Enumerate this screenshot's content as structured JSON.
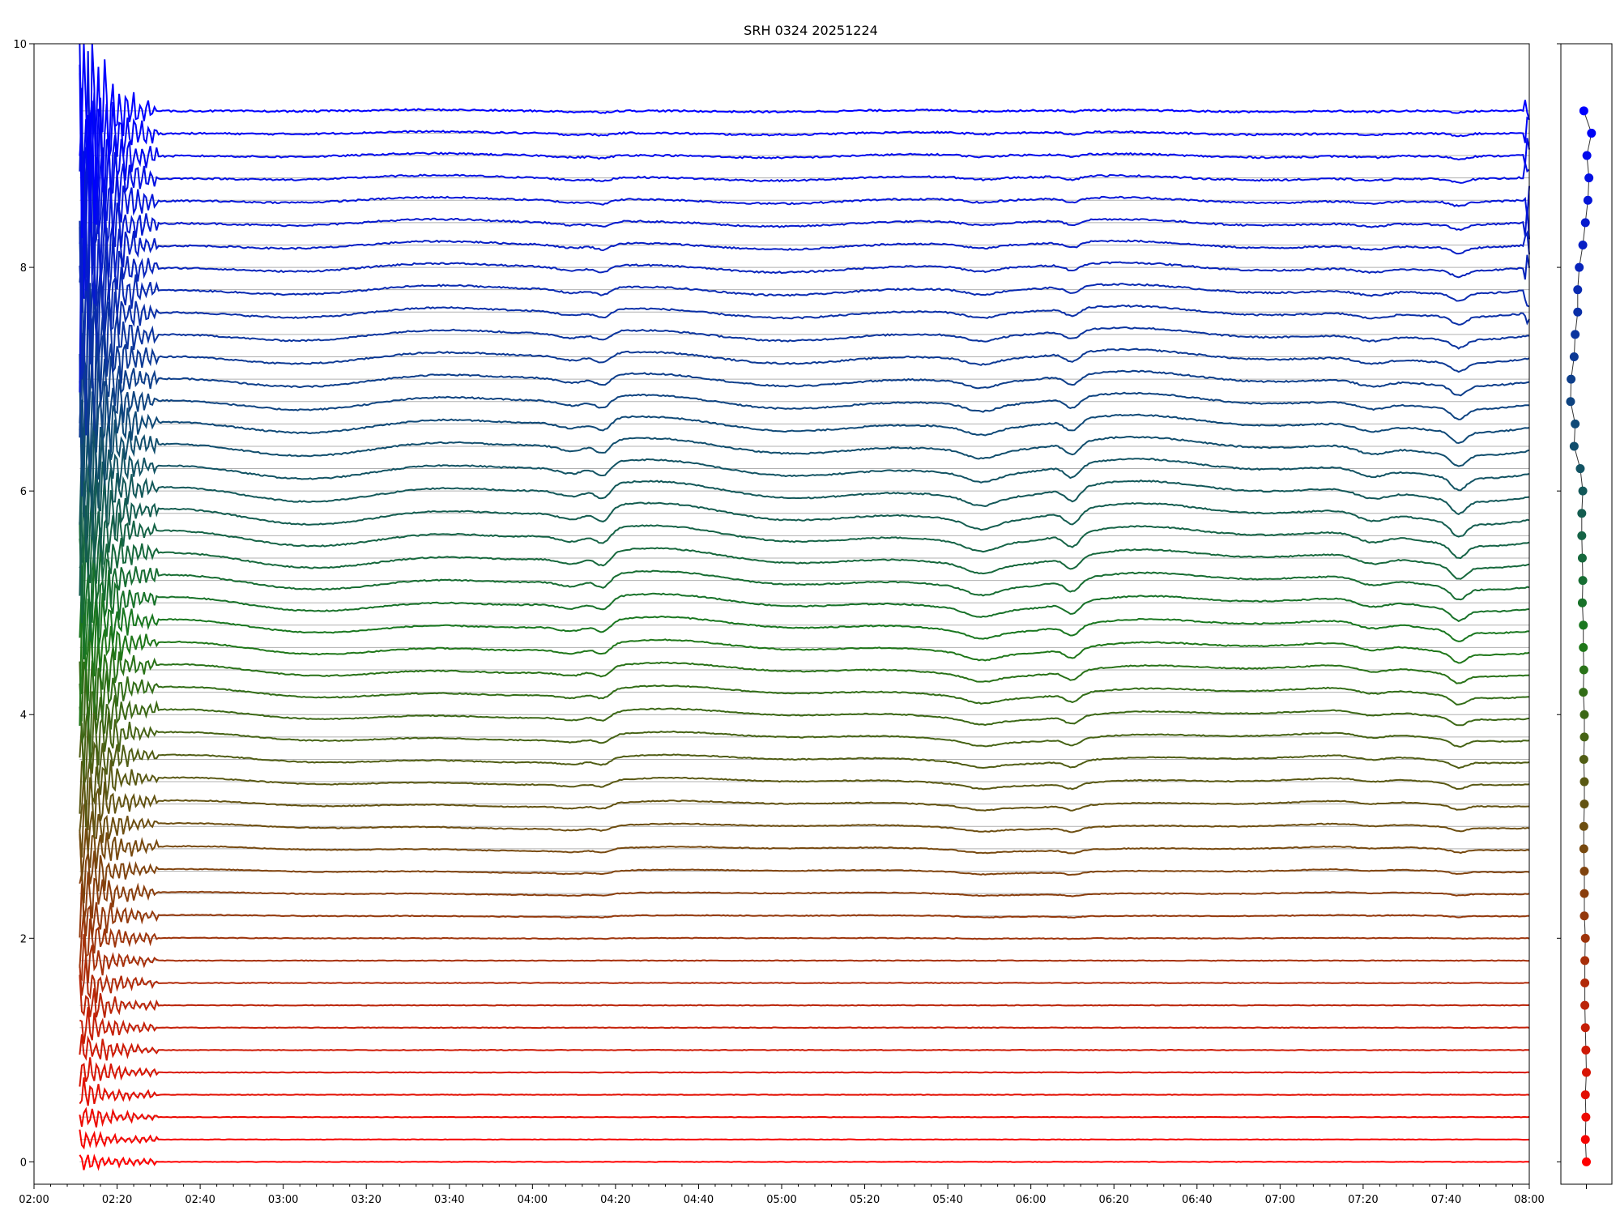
{
  "chart_data": {
    "type": "line",
    "title": "SRH 0324 20251224",
    "xlabel": "",
    "ylabel": "",
    "x_range": [
      "02:00",
      "08:00"
    ],
    "x_tick_labels": [
      "02:00",
      "02:20",
      "02:40",
      "03:00",
      "03:20",
      "03:40",
      "04:00",
      "04:20",
      "04:40",
      "05:00",
      "05:20",
      "05:40",
      "06:00",
      "06:20",
      "06:40",
      "07:00",
      "07:20",
      "07:40",
      "08:00"
    ],
    "ylim": [
      -0.2,
      10
    ],
    "y_tick_labels": [
      "0",
      "2",
      "4",
      "6",
      "8",
      "10"
    ],
    "grid": "horizontal reference line at each trace offset",
    "legend": "none",
    "trace_count": 48,
    "trace_spacing": 0.2,
    "data_start": "02:11",
    "data_end": "08:00",
    "burst_interval": [
      "02:11",
      "02:30"
    ],
    "dip_events": [
      "04:10",
      "04:17",
      "05:48",
      "06:10",
      "07:22",
      "07:43"
    ],
    "colors": {
      "top_trace": "#0000ff",
      "middle_trace": "#1a7a1a",
      "bottom_trace": "#ff0000",
      "grid": "#b0b0b0",
      "axis": "#000000"
    },
    "side_panel": {
      "type": "scatter",
      "marker_offsets": [
        0.0,
        0.2,
        0.4,
        0.6,
        0.8,
        1.0,
        1.2,
        1.4,
        1.6,
        1.8,
        2.0,
        2.2,
        2.4,
        2.6,
        2.8,
        3.0,
        3.2,
        3.4,
        3.6,
        3.8,
        4.0,
        4.2,
        4.4,
        4.6,
        4.8,
        5.0,
        5.2,
        5.4,
        5.6,
        5.8,
        6.0,
        6.2,
        6.4,
        6.6,
        6.8,
        7.0,
        7.2,
        7.4,
        7.6,
        7.8,
        8.0,
        8.2,
        8.4,
        8.6,
        8.8,
        9.0,
        9.2,
        9.4
      ],
      "marker_x": [
        0.5,
        0.48,
        0.49,
        0.48,
        0.5,
        0.49,
        0.48,
        0.47,
        0.47,
        0.47,
        0.48,
        0.46,
        0.46,
        0.46,
        0.45,
        0.45,
        0.46,
        0.46,
        0.45,
        0.46,
        0.46,
        0.44,
        0.45,
        0.44,
        0.44,
        0.42,
        0.43,
        0.42,
        0.41,
        0.41,
        0.43,
        0.38,
        0.26,
        0.28,
        0.19,
        0.2,
        0.26,
        0.28,
        0.33,
        0.33,
        0.36,
        0.43,
        0.48,
        0.53,
        0.55,
        0.51,
        0.6,
        0.45
      ]
    }
  }
}
